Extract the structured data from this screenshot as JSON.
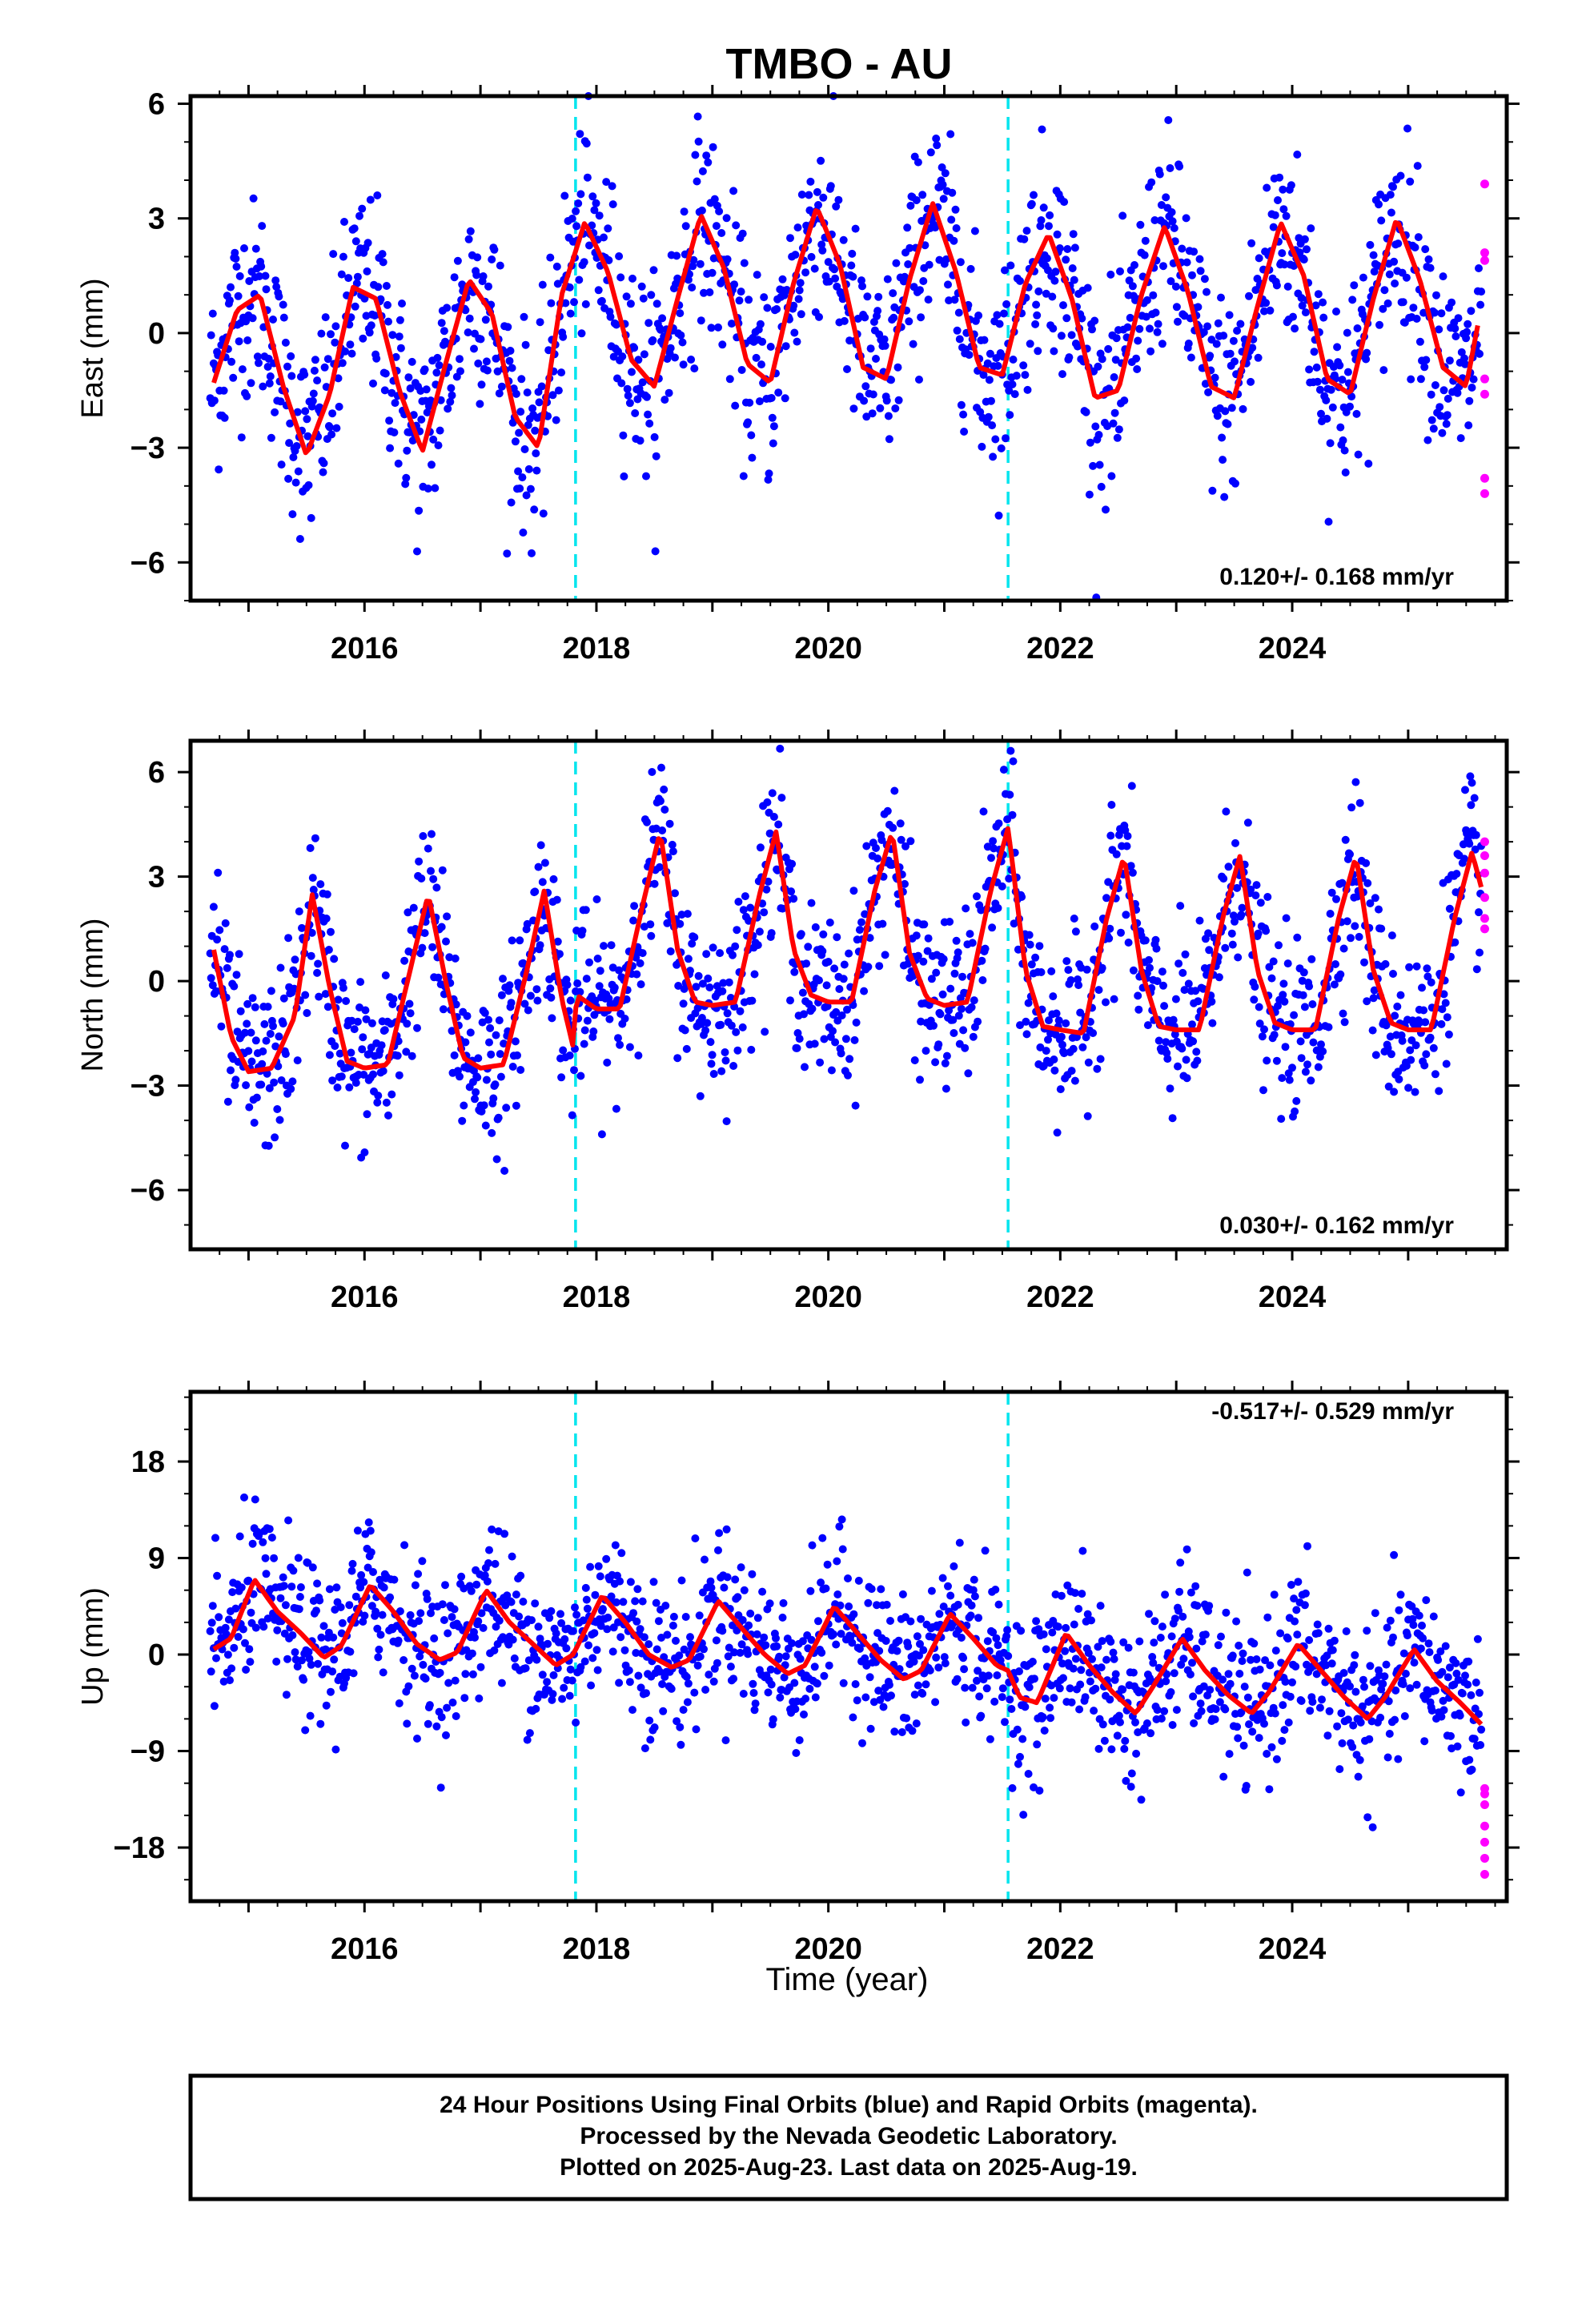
{
  "title": "TMBO - AU",
  "xlabel": "Time (year)",
  "colors": {
    "final_orbits": "#0000ff",
    "rapid_orbits": "#ff00ff",
    "model_fit": "#ff0000",
    "equipment_change": "#00e5ee"
  },
  "footer": {
    "line1": "24 Hour Positions Using Final Orbits (blue) and Rapid Orbits (magenta).",
    "line2": "Processed by the Nevada Geodetic Laboratory.",
    "line3": "Plotted on 2025-Aug-23. Last data on 2025-Aug-19."
  },
  "chart_data": [
    {
      "type": "scatter",
      "component": "east",
      "ylabel": "East (mm)",
      "xlim": [
        2014.5,
        2025.85
      ],
      "ylim": [
        -7,
        6.2
      ],
      "x_ticks": [
        2016,
        2018,
        2020,
        2022,
        2024
      ],
      "x_tick_labels": [
        "2016",
        "2018",
        "2020",
        "2022",
        "2024"
      ],
      "y_ticks": [
        -6,
        -3,
        0,
        3,
        6
      ],
      "y_tick_labels": [
        "−6",
        "−3",
        "0",
        "3",
        "6"
      ],
      "rate_text": "0.120+/- 0.168 mm/yr",
      "rate_position": "bottom-right",
      "data_start": 2014.67,
      "data_end": 2025.63,
      "equipment_changes": [
        2017.82,
        2021.55
      ],
      "model_fit": {
        "x": [
          2014.7,
          2014.9,
          2015.1,
          2015.3,
          2015.5,
          2015.7,
          2015.9,
          2016.1,
          2016.3,
          2016.5,
          2016.7,
          2016.9,
          2017.1,
          2017.3,
          2017.5,
          2017.7,
          2017.9,
          2018.1,
          2018.3,
          2018.5,
          2018.7,
          2018.9,
          2019.1,
          2019.3,
          2019.5,
          2019.7,
          2019.9,
          2020.1,
          2020.3,
          2020.5,
          2020.7,
          2020.9,
          2021.1,
          2021.3,
          2021.5,
          2021.7,
          2021.9,
          2022.1,
          2022.3,
          2022.5,
          2022.7,
          2022.9,
          2023.1,
          2023.3,
          2023.5,
          2023.7,
          2023.9,
          2024.1,
          2024.3,
          2024.5,
          2024.7,
          2024.9,
          2025.1,
          2025.3,
          2025.5,
          2025.6
        ],
        "y": [
          -1.3,
          0.6,
          1.0,
          -1.4,
          -3.2,
          -1.6,
          1.2,
          0.9,
          -1.5,
          -3.1,
          -0.8,
          1.4,
          0.5,
          -2.2,
          -3.0,
          1.0,
          2.9,
          1.6,
          -0.7,
          -1.4,
          0.9,
          3.1,
          1.7,
          -0.8,
          -1.3,
          1.3,
          3.3,
          1.8,
          -0.9,
          -1.2,
          1.4,
          3.4,
          1.6,
          -0.9,
          -1.1,
          1.3,
          2.6,
          0.9,
          -1.7,
          -1.5,
          1.0,
          2.8,
          1.1,
          -1.4,
          -1.7,
          0.7,
          2.9,
          1.5,
          -1.2,
          -1.6,
          0.9,
          3.0,
          1.4,
          -0.9,
          -1.4,
          0.2
        ]
      },
      "rapid_orbit_points": {
        "x": [
          2025.66,
          2025.66,
          2025.66,
          2025.66,
          2025.66,
          2025.66,
          2025.66
        ],
        "y": [
          3.9,
          2.1,
          1.9,
          -1.6,
          -1.2,
          -3.8,
          -4.2
        ]
      },
      "scatter_spread_mm": 1.3
    },
    {
      "type": "scatter",
      "component": "north",
      "ylabel": "North (mm)",
      "xlim": [
        2014.5,
        2025.85
      ],
      "ylim": [
        -7.7,
        6.9
      ],
      "x_ticks": [
        2016,
        2018,
        2020,
        2022,
        2024
      ],
      "x_tick_labels": [
        "2016",
        "2018",
        "2020",
        "2022",
        "2024"
      ],
      "y_ticks": [
        -6,
        -3,
        0,
        3,
        6
      ],
      "y_tick_labels": [
        "−6",
        "−3",
        "0",
        "3",
        "6"
      ],
      "rate_text": "0.030+/- 0.162 mm/yr",
      "rate_position": "bottom-right",
      "data_start": 2014.67,
      "data_end": 2025.63,
      "equipment_changes": [
        2017.82,
        2021.55
      ],
      "model_fit": {
        "x": [
          2014.7,
          2014.85,
          2015.0,
          2015.2,
          2015.4,
          2015.55,
          2015.7,
          2015.85,
          2016.0,
          2016.2,
          2016.4,
          2016.55,
          2016.7,
          2016.85,
          2017.0,
          2017.2,
          2017.4,
          2017.55,
          2017.7,
          2017.8,
          2017.83,
          2018.0,
          2018.2,
          2018.4,
          2018.55,
          2018.7,
          2018.85,
          2019.0,
          2019.2,
          2019.4,
          2019.55,
          2019.7,
          2019.85,
          2020.0,
          2020.2,
          2020.4,
          2020.55,
          2020.7,
          2020.85,
          2021.0,
          2021.2,
          2021.4,
          2021.55,
          2021.7,
          2021.85,
          2022.0,
          2022.2,
          2022.4,
          2022.55,
          2022.7,
          2022.85,
          2023.0,
          2023.2,
          2023.4,
          2023.55,
          2023.7,
          2023.85,
          2024.0,
          2024.2,
          2024.4,
          2024.55,
          2024.7,
          2024.85,
          2025.0,
          2025.2,
          2025.4,
          2025.55,
          2025.63
        ],
        "y": [
          0.9,
          -1.6,
          -2.6,
          -2.5,
          -1.0,
          2.5,
          -0.2,
          -2.3,
          -2.5,
          -2.4,
          0.4,
          2.5,
          0.0,
          -2.2,
          -2.5,
          -2.4,
          0.3,
          2.6,
          -0.5,
          -1.9,
          -0.4,
          -0.8,
          -0.8,
          2.2,
          4.3,
          0.9,
          -0.6,
          -0.7,
          -0.6,
          2.4,
          4.3,
          0.9,
          -0.4,
          -0.6,
          -0.6,
          2.6,
          4.3,
          0.8,
          -0.5,
          -0.7,
          -0.6,
          2.6,
          4.4,
          0.3,
          -1.3,
          -1.4,
          -1.5,
          1.8,
          3.6,
          0.3,
          -1.3,
          -1.4,
          -1.4,
          1.8,
          3.6,
          0.3,
          -1.2,
          -1.4,
          -1.4,
          1.8,
          3.6,
          0.3,
          -1.2,
          -1.4,
          -1.4,
          1.8,
          3.7,
          2.7
        ]
      },
      "rapid_orbit_points": {
        "x": [
          2025.66,
          2025.66,
          2025.66,
          2025.66,
          2025.66,
          2025.66
        ],
        "y": [
          4.0,
          3.6,
          3.1,
          2.4,
          1.8,
          1.5
        ]
      },
      "scatter_spread_mm": 1.2
    },
    {
      "type": "scatter",
      "component": "up",
      "ylabel": "Up (mm)",
      "xlim": [
        2014.5,
        2025.85
      ],
      "ylim": [
        -23,
        24.5
      ],
      "x_ticks": [
        2016,
        2018,
        2020,
        2022,
        2024
      ],
      "x_tick_labels": [
        "2016",
        "2018",
        "2020",
        "2022",
        "2024"
      ],
      "y_ticks": [
        -18,
        -9,
        0,
        9,
        18
      ],
      "y_tick_labels": [
        "−18",
        "−9",
        "0",
        "9",
        "18"
      ],
      "rate_text": "-0.517+/- 0.529 mm/yr",
      "rate_position": "top-right",
      "data_start": 2014.67,
      "data_end": 2025.63,
      "equipment_changes": [
        2017.82,
        2021.55
      ],
      "model_fit": {
        "x": [
          2014.7,
          2014.85,
          2015.05,
          2015.25,
          2015.45,
          2015.65,
          2015.8,
          2016.05,
          2016.25,
          2016.45,
          2016.65,
          2016.8,
          2017.05,
          2017.25,
          2017.45,
          2017.65,
          2017.8,
          2018.05,
          2018.25,
          2018.45,
          2018.65,
          2018.8,
          2019.05,
          2019.25,
          2019.45,
          2019.65,
          2019.8,
          2020.05,
          2020.25,
          2020.45,
          2020.65,
          2020.8,
          2021.05,
          2021.25,
          2021.45,
          2021.55,
          2021.65,
          2021.8,
          2022.05,
          2022.25,
          2022.45,
          2022.65,
          2022.8,
          2023.05,
          2023.25,
          2023.45,
          2023.65,
          2023.8,
          2024.05,
          2024.25,
          2024.45,
          2024.65,
          2024.8,
          2025.05,
          2025.25,
          2025.45,
          2025.63
        ],
        "y": [
          0.5,
          1.5,
          7.0,
          4.0,
          2.0,
          -0.3,
          0.8,
          6.5,
          4.0,
          1.0,
          -0.5,
          0.2,
          6.0,
          3.0,
          1.0,
          -1.0,
          0.0,
          5.5,
          3.0,
          0.0,
          -1.2,
          -0.5,
          5.0,
          2.5,
          0.0,
          -1.8,
          -1.0,
          4.5,
          2.0,
          -0.5,
          -2.3,
          -1.5,
          3.8,
          1.5,
          -1.0,
          -1.5,
          -4.0,
          -4.5,
          2.0,
          -1.0,
          -3.5,
          -5.5,
          -3.0,
          1.5,
          -1.5,
          -3.8,
          -5.5,
          -3.5,
          1.0,
          -1.5,
          -4.0,
          -6.0,
          -4.0,
          0.5,
          -2.5,
          -4.5,
          -6.5
        ]
      },
      "rapid_orbit_points": {
        "x": [
          2025.66,
          2025.66,
          2025.66,
          2025.66,
          2025.66,
          2025.66,
          2025.66
        ],
        "y": [
          -12.5,
          -13.0,
          -14.0,
          -16.0,
          -17.5,
          -19.0,
          -20.5
        ]
      },
      "scatter_spread_mm": 3.6
    }
  ]
}
